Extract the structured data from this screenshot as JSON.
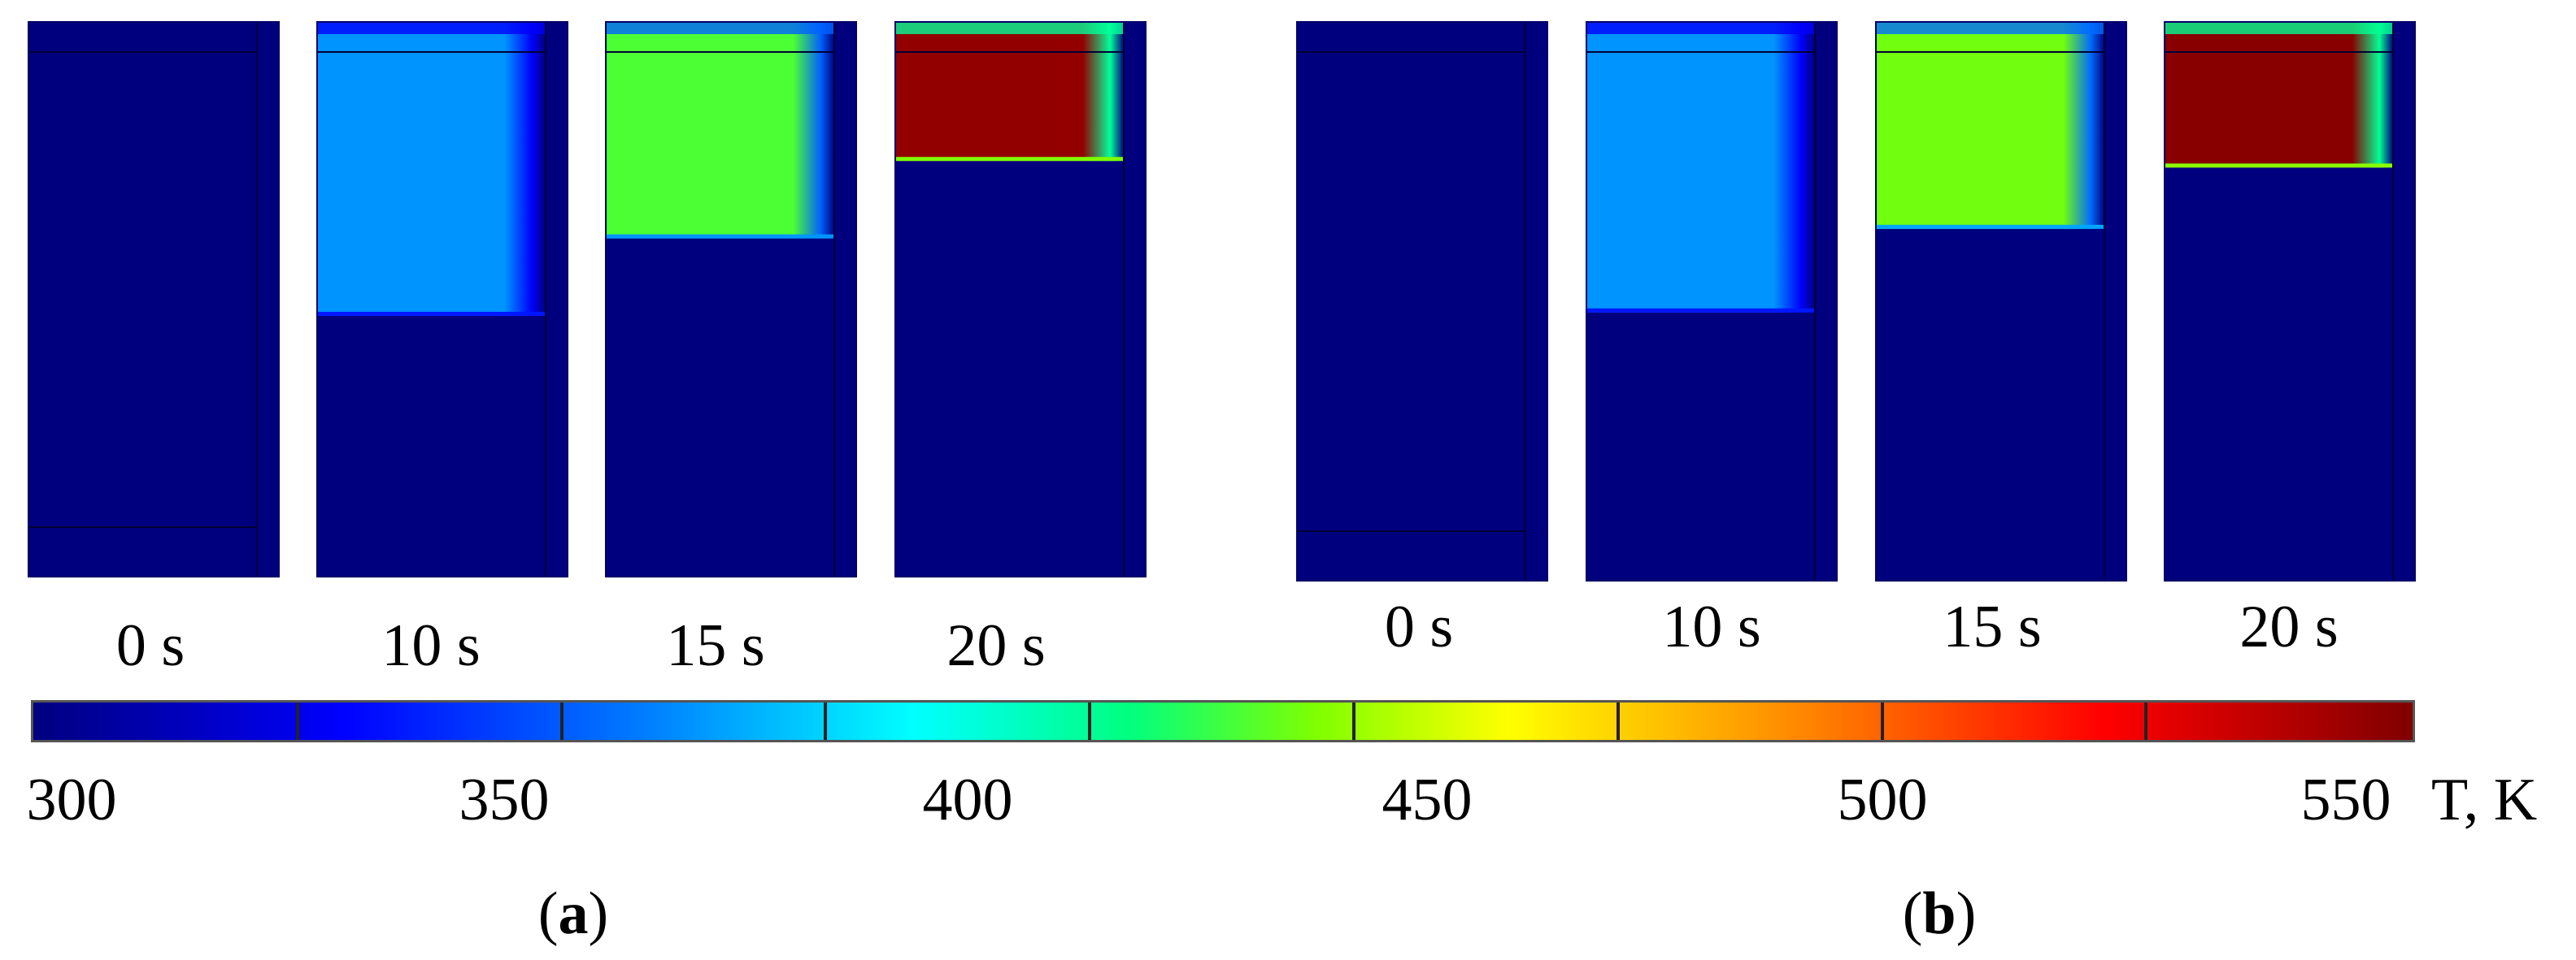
{
  "figure": {
    "groups": [
      {
        "id": "a",
        "label": "a",
        "panels": [
          {
            "time_label": "0 s",
            "heated_fraction": 0.0,
            "temperature_K": 300
          },
          {
            "time_label": "10 s",
            "heated_fraction": 0.53,
            "temperature_K": 372
          },
          {
            "time_label": "15 s",
            "heated_fraction": 0.39,
            "temperature_K": 432
          },
          {
            "time_label": "20 s",
            "heated_fraction": 0.25,
            "temperature_K": 555
          }
        ]
      },
      {
        "id": "b",
        "label": "b",
        "panels": [
          {
            "time_label": "0 s",
            "heated_fraction": 0.0,
            "temperature_K": 300
          },
          {
            "time_label": "10 s",
            "heated_fraction": 0.52,
            "temperature_K": 372
          },
          {
            "time_label": "15 s",
            "heated_fraction": 0.37,
            "temperature_K": 438
          },
          {
            "time_label": "20 s",
            "heated_fraction": 0.26,
            "temperature_K": 558
          }
        ]
      }
    ]
  },
  "colorbar": {
    "min": 300,
    "max": 560,
    "tick_values": [
      300,
      350,
      400,
      450,
      500,
      550
    ],
    "tick_labels": [
      "300",
      "350",
      "400",
      "450",
      "500",
      "550"
    ],
    "unit_label": "T, K",
    "colors": [
      "#00007f",
      "#0000ff",
      "#0080ff",
      "#00ffff",
      "#00ff80",
      "#80ff00",
      "#ffff00",
      "#ff8000",
      "#ff0000",
      "#800000"
    ]
  }
}
